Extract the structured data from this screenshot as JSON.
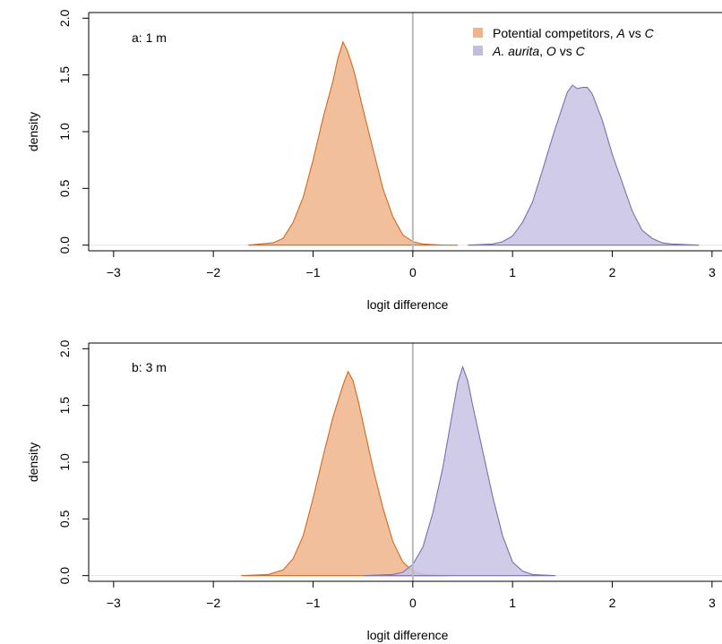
{
  "legend": {
    "entries": [
      {
        "parts": [
          {
            "t": "Potential competitors, "
          },
          {
            "t": "A",
            "i": true
          },
          {
            "t": " vs "
          },
          {
            "t": "C",
            "i": true
          }
        ],
        "color": "#f0b48c"
      },
      {
        "parts": [
          {
            "t": "A. aurita",
            "i": true
          },
          {
            "t": ", "
          },
          {
            "t": "O",
            "i": true
          },
          {
            "t": " vs "
          },
          {
            "t": "C",
            "i": true
          }
        ],
        "color": "#c2bde0"
      }
    ]
  },
  "colors": {
    "orange_fill": "#f0b48c",
    "orange_line": "#d2691e",
    "purple_fill": "#c8c3e3",
    "purple_line": "#7a6fb0",
    "zero_line": "#bbbbbb"
  },
  "chart_data": [
    {
      "type": "area",
      "panel_label": "a: 1 m",
      "xlabel": "logit difference",
      "ylabel": "density",
      "xlim": [
        -3.25,
        3.1
      ],
      "ylim": [
        -0.05,
        2.05
      ],
      "xticks": [
        "−3",
        "−2",
        "−1",
        "0",
        "1",
        "2",
        "3"
      ],
      "yticks": [
        "0.0",
        "0.5",
        "1.0",
        "1.5",
        "2.0"
      ],
      "vline_x": 0,
      "series": [
        {
          "key": "orange",
          "x": [
            -1.65,
            -1.4,
            -1.3,
            -1.2,
            -1.1,
            -1.0,
            -0.9,
            -0.8,
            -0.75,
            -0.7,
            -0.66,
            -0.62,
            -0.58,
            -0.54,
            -0.5,
            -0.4,
            -0.3,
            -0.2,
            -0.1,
            0.0,
            0.1,
            0.2,
            0.3,
            0.45
          ],
          "y": [
            0.0,
            0.02,
            0.06,
            0.2,
            0.42,
            0.75,
            1.12,
            1.45,
            1.65,
            1.79,
            1.72,
            1.62,
            1.5,
            1.35,
            1.2,
            0.85,
            0.5,
            0.25,
            0.09,
            0.03,
            0.01,
            0.005,
            0.0,
            0.0
          ]
        },
        {
          "key": "purple",
          "x": [
            0.55,
            0.8,
            0.9,
            1.0,
            1.1,
            1.2,
            1.3,
            1.4,
            1.5,
            1.55,
            1.6,
            1.65,
            1.7,
            1.75,
            1.8,
            1.9,
            2.0,
            2.1,
            2.2,
            2.3,
            2.4,
            2.5,
            2.6,
            2.87
          ],
          "y": [
            0.0,
            0.01,
            0.03,
            0.08,
            0.2,
            0.38,
            0.66,
            0.95,
            1.22,
            1.35,
            1.41,
            1.38,
            1.39,
            1.39,
            1.33,
            1.1,
            0.8,
            0.55,
            0.3,
            0.13,
            0.06,
            0.02,
            0.01,
            0.0
          ]
        }
      ]
    },
    {
      "type": "area",
      "panel_label": "b: 3 m",
      "xlabel": "logit difference",
      "ylabel": "density",
      "xlim": [
        -3.25,
        3.1
      ],
      "ylim": [
        -0.05,
        2.05
      ],
      "xticks": [
        "−3",
        "−2",
        "−1",
        "0",
        "1",
        "2",
        "3"
      ],
      "yticks": [
        "0.0",
        "0.5",
        "1.0",
        "1.5",
        "2.0"
      ],
      "vline_x": 0,
      "series": [
        {
          "key": "orange",
          "x": [
            -1.72,
            -1.45,
            -1.3,
            -1.2,
            -1.1,
            -1.0,
            -0.9,
            -0.8,
            -0.7,
            -0.65,
            -0.6,
            -0.55,
            -0.5,
            -0.4,
            -0.3,
            -0.2,
            -0.1,
            0.0,
            0.1,
            0.2,
            0.35
          ],
          "y": [
            0.0,
            0.01,
            0.05,
            0.15,
            0.35,
            0.68,
            1.05,
            1.4,
            1.68,
            1.8,
            1.72,
            1.55,
            1.35,
            0.95,
            0.6,
            0.3,
            0.12,
            0.04,
            0.01,
            0.005,
            0.0
          ]
        },
        {
          "key": "purple",
          "x": [
            -0.5,
            -0.2,
            -0.1,
            0.0,
            0.1,
            0.2,
            0.3,
            0.4,
            0.45,
            0.5,
            0.55,
            0.6,
            0.7,
            0.8,
            0.9,
            1.0,
            1.1,
            1.2,
            1.43
          ],
          "y": [
            0.0,
            0.01,
            0.03,
            0.1,
            0.25,
            0.55,
            0.95,
            1.45,
            1.7,
            1.84,
            1.72,
            1.5,
            1.1,
            0.7,
            0.35,
            0.12,
            0.04,
            0.01,
            0.0
          ]
        }
      ]
    }
  ]
}
